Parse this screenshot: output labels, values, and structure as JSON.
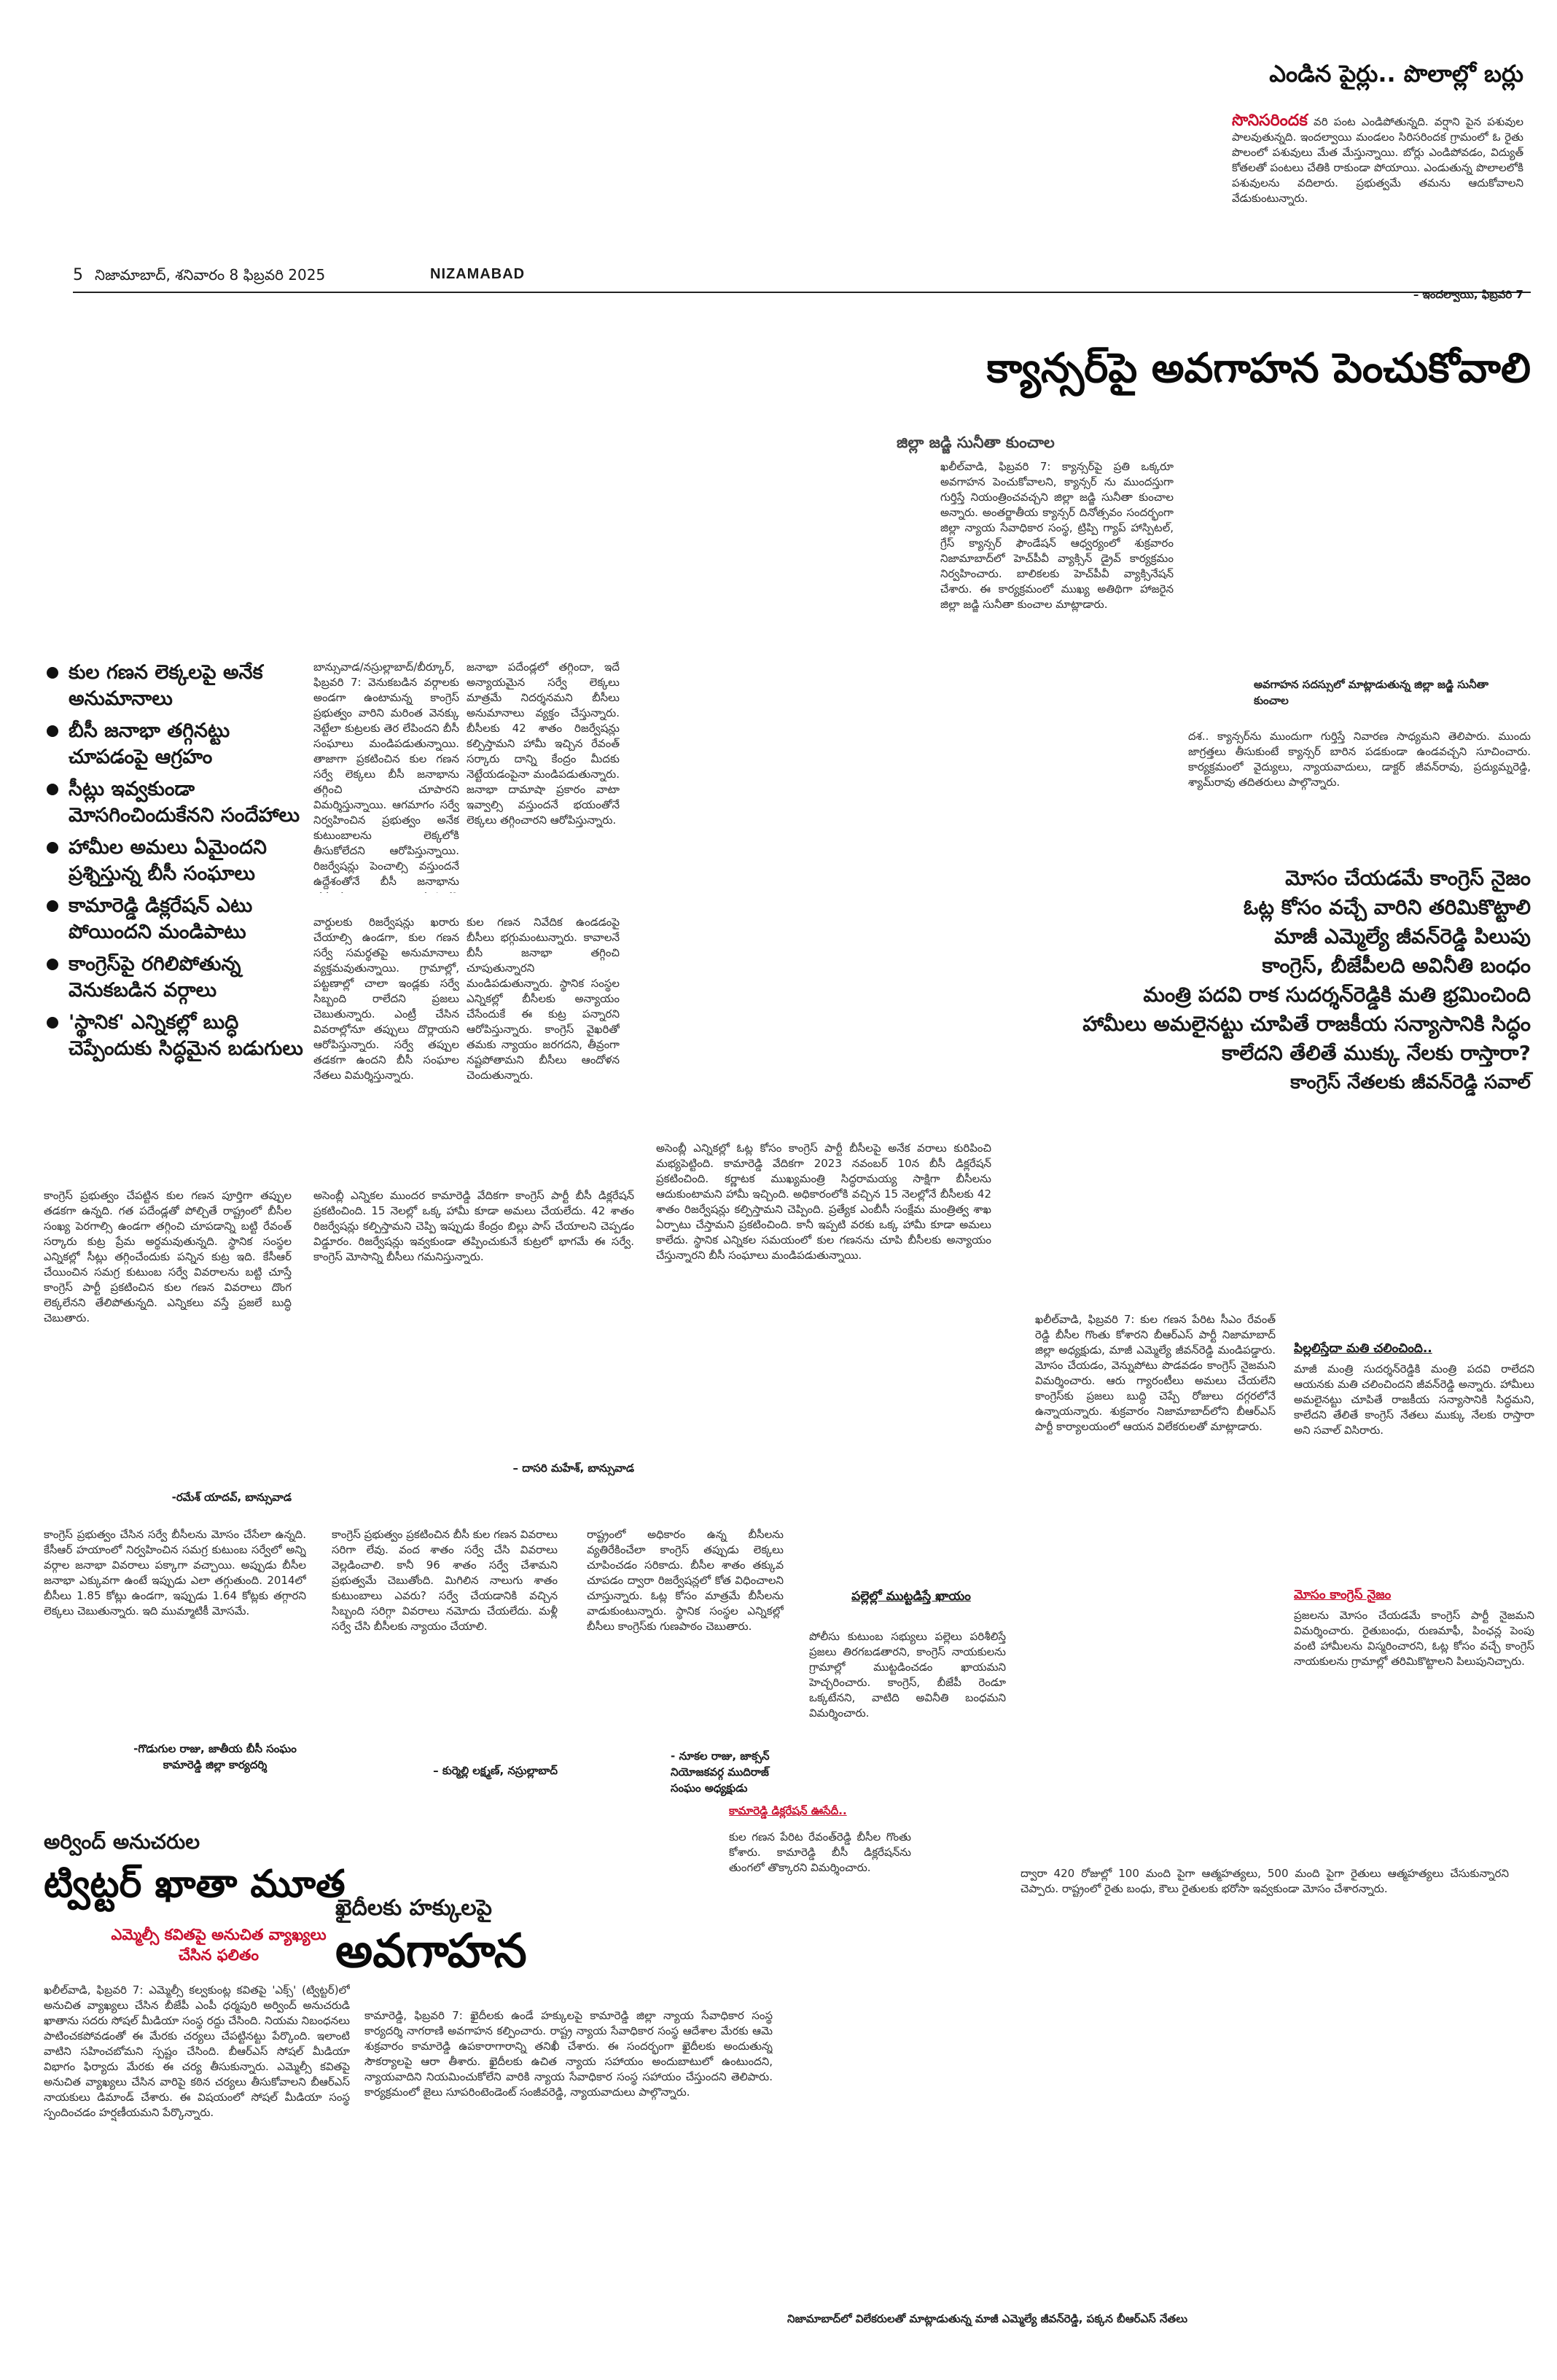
{
  "header": {
    "page_number": "5",
    "date": "నిజామాబాద్, శనివారం 8 ఫిబ్రవరి 2025",
    "edition": "NIZAMABAD"
  },
  "crop_story": {
    "title": "ఎండిన పైర్లు.. పొలాల్లో బర్లు",
    "kicker": "సొనిసరిందక",
    "body": "వరి పంట ఎండిపోతున్నది. వర్షాని పైన పశువుల పాలవుతున్నది. ఇందల్వాయి మండలం సిరిసరిందక గ్రామంలో ఓ రైతు పొలంలో పశువులు మేత మేస్తున్నాయి. బోర్లు ఎండిపోవడం, విద్యుత్ కోతలతో పంటలు చేతికి రాకుండా పోయాయి. ఎండుతున్న పొలాలలోకి పశువులను వదిలారు. ప్రభుత్వమే తమను ఆదుకోవాలని వేడుకుంటున్నారు.",
    "byline": "– ఇందల్వాయి, ఫిబ్రవరి 7"
  },
  "cancer_story": {
    "headline": "క్యాన్సర్‌పై అవగాహన పెంచుకోవాలి",
    "subhead": "జిల్లా జడ్జి సునీతా కుంచాల",
    "body": "ఖలీల్‌వాడి, ఫిబ్రవరి 7: క్యాన్సర్‌పై ప్రతి ఒక్కరూ అవగాహన పెంచుకోవాలని, క్యాన్సర్ ను ముందస్తుగా గుర్తిస్తే నియంత్రించవచ్చని జిల్లా జడ్జి సునీతా కుంచాల అన్నారు. అంతర్జాతీయ క్యాన్సర్ దినోత్సవం సందర్భంగా జిల్లా న్యాయ సేవాధికార సంస్థ, ట్రిప్పి గ్యాప్ హాస్పిటల్, గ్రేస్ క్యాన్సర్ ఫౌండేషన్ ఆధ్వర్యంలో శుక్రవారం నిజామాబాద్‌లో హెచ్‌పీవీ వ్యాక్సిన్ డ్రైవ్ కార్యక్రమం నిర్వహించారు. బాలికలకు హెచ్‌పీవీ వ్యాక్సినేషన్ చేశారు. ఈ కార్యక్రమంలో ముఖ్య అతిథిగా హాజరైన జిల్లా జడ్జి సునీతా కుంచాల మాట్లాడారు.",
    "photo_caption": "అవగాహన సదస్సులో మాట్లాడుతున్న జిల్లా జడ్జి సునీతా కుంచాల",
    "side_text": "దశ.. క్యాన్సర్‌ను ముందుగా గుర్తిస్తే నివారణ సాధ్యమని తెలిపారు. ముందు జాగ్రత్తలు తీసుకుంటే క్యాన్సర్ బారిన పడకుండా ఉండవచ్చని సూచించారు. కార్యక్రమంలో వైద్యులు, న్యాయవాదులు, డాక్టర్ జీవన్‌రావు, ప్రద్యుమ్నరెడ్డి, శ్యామ్‌రావు తదితరులు పాల్గొన్నారు."
  },
  "congress_story": {
    "lines": [
      "మోసం చేయడమే కాంగ్రెస్ నైజం",
      "ఓట్ల కోసం వచ్చే వారిని తరిమికొట్టాలి",
      "మాజీ ఎమ్మెల్యే జీవన్‌రెడ్డి పిలుపు",
      "కాంగ్రెస్, బీజేపీలది అవినీతి బంధం",
      "మంత్రి పదవి రాక సుదర్శన్‌రెడ్డికి మతి భ్రమించింది",
      "హామీలు అమలైనట్టు చూపితే రాజకీయ సన్యాసానికి సిద్ధం",
      "కాలేదని తేలితే ముక్కు నేలకు రాస్తారా?",
      "కాంగ్రెస్ నేతలకు జీవన్‌రెడ్డి సవాల్"
    ],
    "body_left": "ఖలీల్‌వాడి, ఫిబ్రవరి 7: కుల గణన పేరిట సీఎం రేవంత్ రెడ్డి బీసీల గొంతు కోశారని బీఆర్‌ఎస్ పార్టీ నిజామాబాద్ జిల్లా అధ్యక్షుడు, మాజీ ఎమ్మెల్యే జీవన్‌రెడ్డి మండిపడ్డారు. మోసం చేయడం, వెన్నుపోటు పొడవడం కాంగ్రెస్ నైజమని విమర్శించారు. ఆరు గ్యారంటీలు అమలు చేయలేని కాంగ్రెస్‌కు ప్రజలు బుద్ధి చెప్పే రోజులు దగ్గరలోనే ఉన్నాయన్నారు. శుక్రవారం నిజామాబాద్‌లోని బీఆర్‌ఎస్ పార్టీ కార్యాలయంలో ఆయన విలేకరులతో మాట్లాడారు.",
    "box_sub_1": "పిల్లలిస్తేదా మతి చలించింది..",
    "box_text_1": "మాజీ మంత్రి సుదర్శన్‌రెడ్డికి మంత్రి పదవి రాలేదని ఆయనకు మతి చలించిందని జీవన్‌రెడ్డి అన్నారు. హామీలు అమలైనట్టు చూపితే రాజకీయ సన్యాసానికి సిద్ధమని, కాలేదని తేలితే కాంగ్రెస్ నేతలు ముక్కు నేలకు రాస్తారా అని సవాల్ విసిరారు.",
    "box_sub_2": "మోసం కాంగ్రెస్ నైజం",
    "box_text_2": "ప్రజలను మోసం చేయడమే కాంగ్రెస్ పార్టీ నైజమని విమర్శించారు. రైతుబంధు, రుణమాఫీ, పింఛన్ల పెంపు వంటి హామీలను విస్మరించారని, ఓట్ల కోసం వచ్చే కాంగ్రెస్ నాయకులను గ్రామాల్లో తరిమికొట్టాలని పిలుపునిచ్చారు.",
    "mid_sub": "పల్లెల్లో ముట్టడిస్తే ఖాయం",
    "mid_text": "పోలీసు కుటుంబ సభ్యులు పల్లెలు పరిశీలిస్తే ప్రజలు తిరగబడతారని, కాంగ్రెస్ నాయకులను గ్రామాల్లో ముట్టడించడం ఖాయమని హెచ్చరించారు. కాంగ్రెస్, బీజేపీ రెండూ ఒక్కటేనని, వాటిది అవినీతి బంధమని విమర్శించారు.",
    "kamareddy_sub": "కామారెడ్డి డిక్లరేషన్ ఊసేదీ..",
    "kamareddy_text": "కుల గణన పేరిట రేవంత్‌రెడ్డి బీసీల గొంతు కోశారు. కామారెడ్డి బీసీ డిక్లరేషన్‌ను తుంగలో తొక్కారని విమర్శించారు.",
    "right_text": "ద్వారా 420 రోజుల్లో 100 మంది పైగా ఆత్మహత్యలు, 500 మంది పైగా రైతులు ఆత్మహత్యలు చేసుకున్నారని చెప్పారు. రాష్ట్రంలో రైతు బంధు, కౌలు రైతులకు భరోసా ఇవ్వకుండా మోసం చేశారన్నారు.",
    "photo_caption": "నిజామాబాద్‌లో విలేకరులతో మాట్లాడుతున్న మాజీ ఎమ్మెల్యే జీవన్‌రెడ్డి, పక్కన బీఆర్‌ఎస్ నేతలు"
  },
  "caste_story": {
    "bullets": [
      "కుల గణన లెక్కలపై అనేక అనుమానాలు",
      "బీసీ జనాభా తగ్గినట్టు చూపడంపై ఆగ్రహం",
      "సీట్లు ఇవ్వకుండా మోసగించిందుకేనని సందేహాలు",
      "హామీల అమలు ఏమైందని ప్రశ్నిస్తున్న బీసీ సంఘాలు",
      "కామారెడ్డి డిక్లరేషన్ ఎటు పోయిందని మండిపాటు",
      "కాంగ్రెస్‌పై రగిలిపోతున్న వెనుకబడిన వర్గాలు",
      "'స్థానిక' ఎన్నికల్లో బుద్ధి చెప్పేందుకు సిద్ధమైన బడుగులు"
    ],
    "col1": "బాన్సువాడ/నస్రుల్లాబాద్/బీర్కూర్, ఫిబ్రవరి 7: వెనుకబడిన వర్గాలకు అండగా ఉంటామన్న కాంగ్రెస్ ప్రభుత్వం వారిని మరింత వెనక్కు నెట్టేలా కుట్రలకు తెర లేపిందని బీసీ సంఘాలు మండిపడుతున్నాయి. తాజాగా ప్రకటించిన కుల గణన సర్వే లెక్కలు బీసీ జనాభాను తగ్గించి చూపారని విమర్శిస్తున్నాయి. ఆగమాగం సర్వే నిర్వహించిన ప్రభుత్వం అనేక కుటుంబాలను లెక్కలోకి తీసుకోలేదని ఆరోపిస్తున్నాయి. రిజర్వేషన్లు పెంచాల్సి వస్తుందనే ఉద్దేశంతోనే బీసీ జనాభాను తక్కువగా చూపారని మండిపడుతున్నాయి.",
    "col2": "జనాభా పదేండ్లలో తగ్గిందా, ఇదే అన్యాయమైన సర్వే లెక్కలు మాత్రమే నిదర్శనమని బీసీలు అనుమానాలు వ్యక్తం చేస్తున్నారు. బీసీలకు 42 శాతం రిజర్వేషన్లు కల్పిస్తామని హామీ ఇచ్చిన రేవంత్ సర్కారు దాన్ని కేంద్రం మీదకు నెట్టేయడంపైనా మండిపడుతున్నారు. జనాభా దామాషా ప్రకారం వాటా ఇవ్వాల్సి వస్తుందనే భయంతోనే లెక్కలు తగ్గించారని ఆరోపిస్తున్నారు.",
    "col3": "వార్డులకు రిజర్వేషన్లు ఖరారు చేయాల్సి ఉండగా, కుల గణన సర్వే సమర్థతపై అనుమానాలు వ్యక్తమవుతున్నాయి. గ్రామాల్లో, పట్టణాల్లో చాలా ఇండ్లకు సర్వే సిబ్బంది రాలేదని ప్రజలు చెబుతున్నారు. ఎంట్రీ చేసిన వివరాల్లోనూ తప్పులు దొర్లాయని ఆరోపిస్తున్నారు. సర్వే తప్పుల తడకగా ఉందని బీసీ సంఘాల నేతలు విమర్శిస్తున్నారు.",
    "col4": "కుల గణన నివేదిక ఉండడంపై బీసీలు భగ్గుమంటున్నారు. కావాలనే బీసీ జనాభా తగ్గించి చూపుతున్నారని మండిపడుతున్నారు. స్థానిక సంస్థల ఎన్నికల్లో బీసీలకు అన్యాయం చేసేందుకే ఈ కుట్ర పన్నారని ఆరోపిస్తున్నారు. కాంగ్రెస్ వైఖరితో తమకు న్యాయం జరగదని, తీవ్రంగా నష్టపోతామని బీసీలు ఆందోళన చెందుతున్నారు.",
    "row2_col1": "కాంగ్రెస్ ప్రభుత్వం చేపట్టిన కుల గణన పూర్తిగా తప్పుల తడకగా ఉన్నది. గత పదేండ్లతో పోల్చితే రాష్ట్రంలో బీసీల సంఖ్య పెరగాల్సి ఉండగా తగ్గించి చూపడాన్ని బట్టి రేవంత్ సర్కారు కుట్ర ప్రేమ అర్థమవుతున్నది. స్థానిక సంస్థల ఎన్నికల్లో సీట్లు తగ్గించేందుకు పన్నిన కుట్ర ఇది. కేసీఆర్ చేయించిన సమగ్ర కుటుంబ సర్వే వివరాలను బట్టి చూస్తే కాంగ్రెస్ పార్టీ ప్రకటించిన కుల గణన వివరాలు దొంగ లెక్కలేనని తేలిపోతున్నది. ఎన్నికలు వస్తే ప్రజలే బుద్ధి చెబుతారు.",
    "row2_sig1": "-రమేశ్ యాదవ్, బాన్సువాడ",
    "row2_col2": "అసెంబ్లీ ఎన్నికల ముందర కామారెడ్డి వేదికగా కాంగ్రెస్ పార్టీ బీసీ డిక్లరేషన్ ప్రకటించింది. 15 నెలల్లో ఒక్క హామీ కూడా అమలు చేయలేదు. 42 శాతం రిజర్వేషన్లు కల్పిస్తామని చెప్పి ఇప్పుడు కేంద్రం బిల్లు పాస్ చేయాలని చెప్పడం విడ్డూరం. రిజర్వేషన్లు ఇవ్వకుండా తప్పించుకునే కుట్రలో భాగమే ఈ సర్వే. కాంగ్రెస్ మోసాన్ని బీసీలు గమనిస్తున్నారు.",
    "row2_sig2": "– దాసరి మహేశ్, బాన్సువాడ",
    "row3_col1": "కాంగ్రెస్ ప్రభుత్వం చేసిన సర్వే బీసీలను మోసం చేసేలా ఉన్నది. కేసీఆర్ హయాంలో నిర్వహించిన సమగ్ర కుటుంబ సర్వేలో అన్ని వర్గాల జనాభా వివరాలు పక్కాగా వచ్చాయి. అప్పుడు బీసీల జనాభా ఎక్కువగా ఉంటే ఇప్పుడు ఎలా తగ్గుతుంది. 2014లో బీసీలు 1.85 కోట్లు ఉండగా, ఇప్పుడు 1.64 కోట్లకు తగ్గారని లెక్కలు చెబుతున్నారు. ఇది ముమ్మాటికీ మోసమే.",
    "row3_sig1": "-గొడుగుల రాజు, జాతీయ బీసీ సంఘం కామారెడ్డి జిల్లా కార్యదర్శి",
    "row3_col2": "కాంగ్రెస్ ప్రభుత్వం ప్రకటించిన బీసీ కుల గణన వివరాలు సరిగా లేవు. వంద శాతం సర్వే చేసి వివరాలు వెల్లడించాలి. కానీ 96 శాతం సర్వే చేశామని ప్రభుత్వమే చెబుతోంది. మిగిలిన నాలుగు శాతం కుటుంబాలు ఎవరు? సర్వే చేయడానికి వచ్చిన సిబ్బంది సరిగ్గా వివరాలు నమోదు చేయలేదు. మళ్లీ సర్వే చేసి బీసీలకు న్యాయం చేయాలి.",
    "row3_sig2": "– కుర్మెల్లి లక్ష్మణ్, నస్రుల్లాబాద్",
    "row3_col3": "రాష్ట్రంలో అధికారం ఉన్న బీసీలను వ్యతిరేకించేలా కాంగ్రెస్ తప్పుడు లెక్కలు చూపించడం సరికాదు. బీసీల శాతం తక్కువ చూపడం ద్వారా రిజర్వేషన్లలో కోత విధించాలని చూస్తున్నారు. ఓట్ల కోసం మాత్రమే బీసీలను వాడుకుంటున్నారు. స్థానిక సంస్థల ఎన్నికల్లో బీసీలు కాంగ్రెస్‌కు గుణపాఠం చెబుతారు.",
    "row3_sig3": "- నూకల రాజు, జాక్సన్ నియోజకవర్గ ముదిరాజ్ సంఘం అధ్యక్షుడు",
    "mid_text": "అసెంబ్లీ ఎన్నికల్లో ఓట్ల కోసం కాంగ్రెస్ పార్టీ బీసీలపై అనేక వరాలు కురిపించి మభ్యపెట్టింది. కామారెడ్డి వేదికగా 2023 నవంబర్ 10న బీసీ డిక్లరేషన్ ప్రకటించింది. కర్ణాటక ముఖ్యమంత్రి సిద్ధరామయ్య సాక్షిగా బీసీలను ఆదుకుంటామని హామీ ఇచ్చింది. అధికారంలోకి వచ్చిన 15 నెలల్లోనే బీసీలకు 42 శాతం రిజర్వేషన్లు కల్పిస్తామని చెప్పింది. ప్రత్యేక ఎంబీసీ సంక్షేమ మంత్రిత్వ శాఖ ఏర్పాటు చేస్తామని ప్రకటించింది. కానీ ఇప్పటి వరకు ఒక్క హామీ కూడా అమలు కాలేదు. స్థానిక ఎన్నికల సమయంలో కుల గణనను చూపి బీసీలకు అన్యాయం చేస్తున్నారని బీసీ సంఘాలు మండిపడుతున్నాయి."
  },
  "twitter_story": {
    "kicker": "అర్వింద్ అనుచరుల",
    "headline": "ట్విట్టర్ ఖాతా మూత",
    "subhead": "ఎమ్మెల్సీ కవితపై అనుచిత వ్యాఖ్యలు చేసిన ఫలితం",
    "body": "ఖలీల్‌వాడి, ఫిబ్రవరి 7: ఎమ్మెల్సీ కల్వకుంట్ల కవితపై 'ఎక్స్' (ట్విట్టర్)లో అనుచిత వ్యాఖ్యలు చేసిన బీజేపీ ఎంపీ ధర్మపురి అర్వింద్ అనుచరుడి ఖాతాను సదరు సోషల్ మీడియా సంస్థ రద్దు చేసింది. నియమ నిబంధనలు పాటించకపోవడంతో ఈ మేరకు చర్యలు చేపట్టినట్టు పేర్కొంది. ఇలాంటి వాటిని సహించబోమని స్పష్టం చేసింది. బీఆర్‌ఎస్ సోషల్ మీడియా విభాగం ఫిర్యాదు మేరకు ఈ చర్య తీసుకున్నారు. ఎమ్మెల్సీ కవితపై అనుచిత వ్యాఖ్యలు చేసిన వారిపై కఠిన చర్యలు తీసుకోవాలని బీఆర్‌ఎస్ నాయకులు డిమాండ్ చేశారు. ఈ విషయంలో సోషల్ మీడియా సంస్థ స్పందించడం హర్షణీయమని పేర్కొన్నారు."
  },
  "prisoners_story": {
    "kicker": "ఖైదీలకు హక్కులపై",
    "headline": "అవగాహన",
    "body": "కామారెడ్డి, ఫిబ్రవరి 7: ఖైదీలకు ఉండే హక్కులపై కామారెడ్డి జిల్లా న్యాయ సేవాధికార సంస్థ కార్యదర్శి నాగరాణి అవగాహన కల్పించారు. రాష్ట్ర న్యాయ సేవాధికార సంస్థ ఆదేశాల మేరకు ఆమె శుక్రవారం కామారెడ్డి ఉపకారాగారాన్ని తనిఖీ చేశారు. ఈ సందర్భంగా ఖైదీలకు అందుతున్న సౌకర్యాలపై ఆరా తీశారు. ఖైదీలకు ఉచిత న్యాయ సహాయం అందుబాటులో ఉంటుందని, న్యాయవాదిని నియమించుకోలేని వారికి న్యాయ సేవాధికార సంస్థ సహాయం చేస్తుందని తెలిపారు. కార్యక్రమంలో జైలు సూపరింటెండెంట్ సంజీవరెడ్డి, న్యాయవాదులు పాల్గొన్నారు."
  }
}
